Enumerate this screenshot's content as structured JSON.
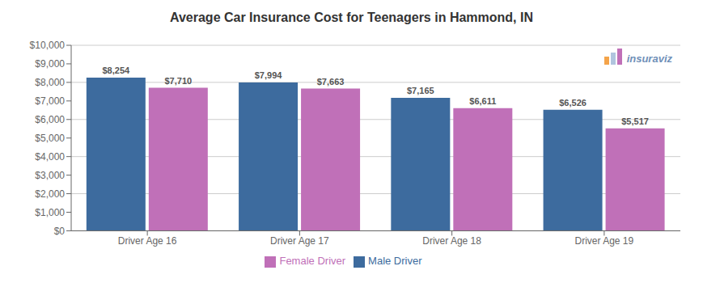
{
  "chart_data": {
    "type": "bar",
    "title": "Average Car Insurance Cost for Teenagers in Hammond, IN",
    "categories": [
      "Driver Age 16",
      "Driver Age 17",
      "Driver Age 18",
      "Driver Age 19"
    ],
    "series": [
      {
        "name": "Male Driver",
        "color": "#3d6b9e",
        "values": [
          8254,
          7994,
          7165,
          6526
        ],
        "value_labels": [
          "$8,254",
          "$7,994",
          "$7,165",
          "$6,526"
        ]
      },
      {
        "name": "Female Driver",
        "color": "#c070b8",
        "values": [
          7710,
          7663,
          6611,
          5517
        ],
        "value_labels": [
          "$7,710",
          "$7,663",
          "$6,611",
          "$5,517"
        ]
      }
    ],
    "ylim": [
      0,
      10000
    ],
    "yticks": [
      {
        "value": 0,
        "label": "$0"
      },
      {
        "value": 1000,
        "label": "$1,000"
      },
      {
        "value": 2000,
        "label": "$2,000"
      },
      {
        "value": 3000,
        "label": "$3,000"
      },
      {
        "value": 4000,
        "label": "$4,000"
      },
      {
        "value": 5000,
        "label": "$5,000"
      },
      {
        "value": 6000,
        "label": "$6,000"
      },
      {
        "value": 7000,
        "label": "$7,000"
      },
      {
        "value": 8000,
        "label": "$8,000"
      },
      {
        "value": 9000,
        "label": "$9,000"
      },
      {
        "value": 10000,
        "label": "$10,000"
      }
    ],
    "grid": true,
    "legend": "bottom",
    "data_labels": true,
    "annotations": [
      {
        "text": "insuraviz",
        "color": "#7090b8",
        "colors": [
          "#f4a44a",
          "#b0c4de",
          "#c070b8"
        ]
      }
    ]
  }
}
